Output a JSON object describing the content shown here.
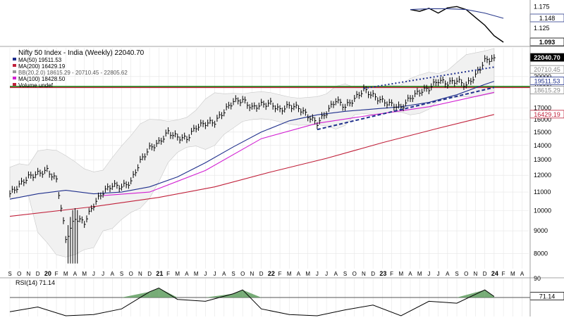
{
  "chart_data": [
    {
      "type": "line",
      "panel": "relative-strength-top",
      "y_ticks": [
        1.125,
        1.15,
        1.175
      ],
      "value_badges": [
        "1.148",
        "1.093"
      ],
      "series": [
        {
          "color": "#000000",
          "x": [
            "2023-04",
            "2023-05",
            "2023-06",
            "2023-07",
            "2023-08",
            "2023-09",
            "2023-10",
            "2023-11",
            "2023-12",
            "2024-01",
            "2024-02"
          ],
          "values": [
            1.168,
            1.164,
            1.171,
            1.16,
            1.172,
            1.175,
            1.168,
            1.15,
            1.132,
            1.108,
            1.093
          ]
        },
        {
          "color": "#2a3a8c",
          "x": [
            "2023-04",
            "2023-06",
            "2023-08",
            "2023-10",
            "2023-12",
            "2024-02"
          ],
          "values": [
            1.168,
            1.17,
            1.17,
            1.168,
            1.16,
            1.148
          ]
        }
      ]
    },
    {
      "type": "line",
      "panel": "price",
      "title": "Nifty 50 Index - India (Weekly) 22040.70",
      "legend": [
        {
          "text": "MA(50) 19511.53",
          "color": "#1f2f8c"
        },
        {
          "text": "MA(200) 16429.19",
          "color": "#c0203a"
        },
        {
          "text": "BB(20,2.0) 18615.29 - 20710.45 - 22805.62",
          "color": "#999999"
        },
        {
          "text": "MA(100) 18428.50",
          "color": "#d21fd2"
        },
        {
          "text": "Volume undef",
          "color": "#c0203a"
        }
      ],
      "y_scale": "log",
      "ylim": [
        7400,
        23200
      ],
      "y_ticks": [
        8000,
        9000,
        10000,
        11000,
        12000,
        13000,
        14000,
        15000,
        16000,
        17000,
        19000,
        20000
      ],
      "value_badges": [
        "22040.70",
        "20710.45",
        "19511.53",
        "18615.29",
        "16429.19"
      ],
      "x_tick_labels": [
        "S",
        "O",
        "N",
        "D",
        "20",
        "F",
        "M",
        "A",
        "M",
        "J",
        "J",
        "A",
        "S",
        "O",
        "N",
        "D",
        "21",
        "F",
        "M",
        "A",
        "M",
        "J",
        "J",
        "A",
        "S",
        "O",
        "N",
        "D",
        "22",
        "F",
        "M",
        "A",
        "M",
        "J",
        "J",
        "A",
        "S",
        "O",
        "N",
        "D",
        "23",
        "F",
        "M",
        "A",
        "M",
        "J",
        "J",
        "A",
        "S",
        "O",
        "N",
        "D",
        "24",
        "F",
        "M",
        "A"
      ],
      "price": {
        "x": [
          "2019-09",
          "2019-10",
          "2019-11",
          "2019-12",
          "2020-01",
          "2020-02",
          "2020-03",
          "2020-04",
          "2020-05",
          "2020-06",
          "2020-07",
          "2020-08",
          "2020-09",
          "2020-10",
          "2020-11",
          "2020-12",
          "2021-01",
          "2021-02",
          "2021-03",
          "2021-04",
          "2021-05",
          "2021-06",
          "2021-07",
          "2021-08",
          "2021-09",
          "2021-10",
          "2021-11",
          "2021-12",
          "2022-01",
          "2022-02",
          "2022-03",
          "2022-04",
          "2022-05",
          "2022-06",
          "2022-07",
          "2022-08",
          "2022-09",
          "2022-10",
          "2022-11",
          "2022-12",
          "2023-01",
          "2023-02",
          "2023-03",
          "2023-04",
          "2023-05",
          "2023-06",
          "2023-07",
          "2023-08",
          "2023-09",
          "2023-10",
          "2023-11",
          "2023-12",
          "2024-01"
        ],
        "close": [
          10900,
          11400,
          11900,
          12100,
          12300,
          11700,
          8600,
          9600,
          9400,
          10300,
          11000,
          11400,
          11300,
          11600,
          12900,
          13800,
          14200,
          15000,
          14600,
          14500,
          15400,
          15700,
          15800,
          16700,
          17600,
          17700,
          17000,
          17300,
          17400,
          16800,
          17200,
          17000,
          16300,
          15700,
          16600,
          17700,
          17100,
          17800,
          18700,
          18100,
          17600,
          17300,
          17000,
          17900,
          18500,
          18800,
          19600,
          19300,
          19600,
          19100,
          20100,
          21700,
          22040
        ]
      },
      "series": [
        {
          "name": "MA(50)",
          "color": "#1f2f8c",
          "x": [
            "2019-09",
            "2019-12",
            "2020-03",
            "2020-06",
            "2020-09",
            "2020-12",
            "2021-03",
            "2021-06",
            "2021-09",
            "2021-12",
            "2022-03",
            "2022-06",
            "2022-09",
            "2022-12",
            "2023-03",
            "2023-06",
            "2023-09",
            "2023-12",
            "2024-01"
          ],
          "values": [
            10600,
            10900,
            11100,
            10900,
            11000,
            11300,
            11900,
            12800,
            13900,
            15000,
            15900,
            16400,
            16700,
            16900,
            17100,
            17500,
            18200,
            19200,
            19511.53
          ]
        },
        {
          "name": "MA(200)",
          "color": "#c0203a",
          "x": [
            "2019-09",
            "2020-06",
            "2021-01",
            "2021-07",
            "2022-01",
            "2022-07",
            "2023-01",
            "2023-07",
            "2024-01"
          ],
          "values": [
            9700,
            10200,
            10700,
            11300,
            12200,
            13100,
            14200,
            15300,
            16429.19
          ]
        },
        {
          "name": "MA(100)",
          "color": "#d21fd2",
          "x": [
            "2020-07",
            "2020-12",
            "2021-06",
            "2021-12",
            "2022-06",
            "2022-12",
            "2023-06",
            "2024-01"
          ],
          "values": [
            10800,
            11000,
            12300,
            14500,
            15700,
            16400,
            17100,
            18428.5
          ]
        }
      ],
      "annotations": {
        "horizontal_lines": [
          {
            "value": 18900,
            "color": "#c0203a"
          },
          {
            "value": 19000,
            "color": "#1a8a1a"
          }
        ],
        "trendlines": [
          {
            "from": [
              "2022-06",
              15200
            ],
            "to": [
              "2024-01",
              18900
            ],
            "color": "#1f2f8c",
            "style": "dashed"
          },
          {
            "from": [
              "2022-11",
              18800
            ],
            "to": [
              "2024-01",
              21000
            ],
            "color": "#1f2f8c",
            "style": "dotted"
          }
        ]
      },
      "grid": true
    },
    {
      "type": "line",
      "panel": "RSI",
      "title": "RSI(14) 71.14",
      "ylim": [
        50,
        90
      ],
      "y_ticks": [
        90
      ],
      "value_badges": [
        "71.14"
      ],
      "threshold": 70,
      "series": [
        {
          "name": "RSI(14)",
          "color": "#000000",
          "x": [
            "2019-09",
            "2019-12",
            "2020-03",
            "2020-06",
            "2020-09",
            "2020-12",
            "2021-01",
            "2021-03",
            "2021-06",
            "2021-09",
            "2021-10",
            "2021-12",
            "2022-03",
            "2022-06",
            "2022-09",
            "2022-12",
            "2023-03",
            "2023-06",
            "2023-09",
            "2023-12",
            "2024-01"
          ],
          "values": [
            55,
            60,
            32,
            52,
            58,
            76,
            80,
            68,
            66,
            74,
            78,
            58,
            52,
            45,
            57,
            62,
            48,
            66,
            64,
            78,
            71.14
          ]
        }
      ]
    }
  ]
}
